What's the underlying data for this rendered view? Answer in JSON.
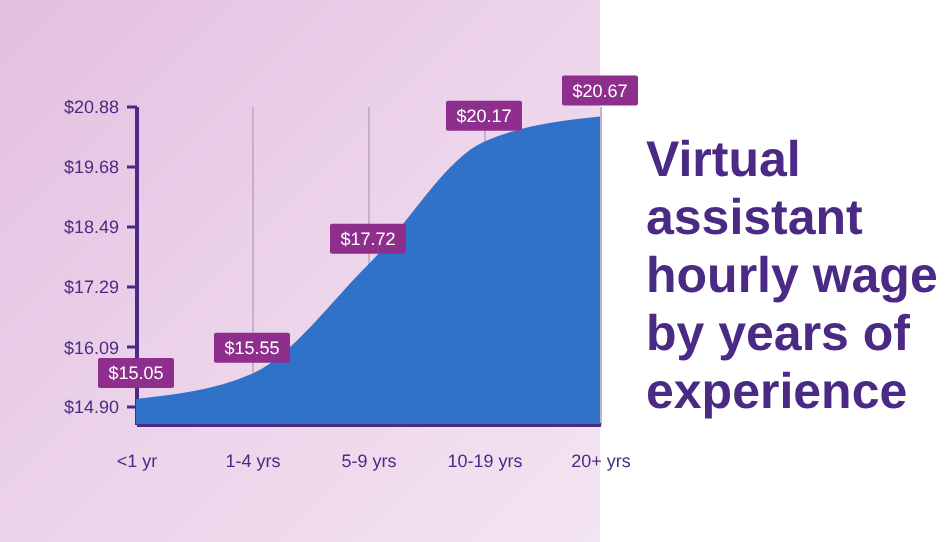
{
  "chart_data": {
    "type": "area",
    "title": "Virtual assistant hourly wage by years of experience",
    "categories": [
      "<1 yr",
      "1-4 yrs",
      "5-9 yrs",
      "10-19 yrs",
      "20+ yrs"
    ],
    "values": [
      15.05,
      15.55,
      17.72,
      20.17,
      20.67
    ],
    "color": "#2f72c8",
    "value_labels": [
      "$15.05",
      "$15.55",
      "$17.72",
      "$20.17",
      "$20.67"
    ],
    "ylim": [
      14.55,
      20.88
    ],
    "yticks": [
      {
        "value": 14.9,
        "label": "$14.90"
      },
      {
        "value": 16.09,
        "label": "$16.09"
      },
      {
        "value": 17.29,
        "label": "$17.29"
      },
      {
        "value": 18.49,
        "label": "$18.49"
      },
      {
        "value": 19.68,
        "label": "$19.68"
      },
      {
        "value": 20.88,
        "label": "$20.88"
      }
    ],
    "grid": "x"
  }
}
